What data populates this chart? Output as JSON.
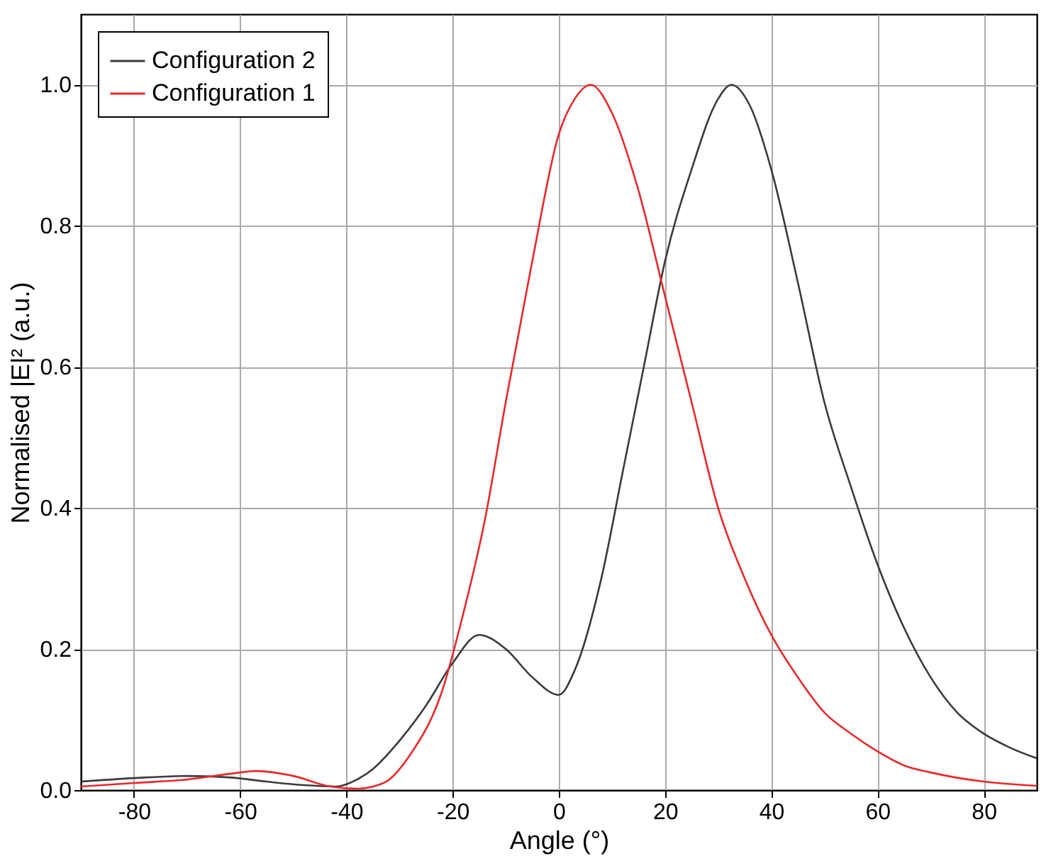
{
  "chart_data": {
    "type": "line",
    "xlabel": "Angle (°)",
    "ylabel": "Normalised |E|² (a.u.)",
    "xlim": [
      -90,
      90
    ],
    "ylim": [
      0,
      1.1
    ],
    "xticks": [
      -80,
      -60,
      -40,
      -20,
      0,
      20,
      40,
      60,
      80
    ],
    "yticks": [
      {
        "value": 0,
        "label": "0.0"
      },
      0.2,
      0.4,
      0.6,
      0.8,
      {
        "value": 1,
        "label": "1.0"
      }
    ],
    "grid": true,
    "legend": "top left",
    "marker": "none",
    "line_style": "solid",
    "series": [
      {
        "name": "Configuration 2",
        "color": "#3a3a3a",
        "x": [
          -90,
          -80,
          -70,
          -62,
          -55,
          -48,
          -42,
          -38,
          -35,
          -30,
          -25,
          -20,
          -15,
          -10,
          -5,
          0,
          3,
          8,
          12,
          16,
          20,
          25,
          30,
          32.5,
          36,
          40,
          45,
          50,
          55,
          60,
          65,
          70,
          75,
          80,
          85,
          90
        ],
        "values": [
          0.012,
          0.017,
          0.02,
          0.018,
          0.012,
          0.007,
          0.005,
          0.015,
          0.03,
          0.07,
          0.12,
          0.18,
          0.22,
          0.2,
          0.16,
          0.135,
          0.17,
          0.3,
          0.45,
          0.6,
          0.75,
          0.88,
          0.98,
          1.0,
          0.97,
          0.88,
          0.72,
          0.55,
          0.43,
          0.32,
          0.23,
          0.16,
          0.11,
          0.08,
          0.06,
          0.045
        ]
      },
      {
        "name": "Configuration 1",
        "color": "#e8282a",
        "x": [
          -90,
          -80,
          -70,
          -62,
          -57,
          -50,
          -43,
          -38,
          -33,
          -28,
          -22,
          -18,
          -14,
          -10,
          -5,
          0,
          3,
          6,
          10,
          15,
          20,
          25,
          30,
          35,
          40,
          45,
          50,
          55,
          60,
          65,
          70,
          80,
          90
        ],
        "values": [
          0.005,
          0.01,
          0.015,
          0.023,
          0.027,
          0.02,
          0.005,
          0.002,
          0.01,
          0.05,
          0.14,
          0.25,
          0.38,
          0.55,
          0.75,
          0.93,
          0.98,
          1.0,
          0.96,
          0.85,
          0.7,
          0.55,
          0.4,
          0.3,
          0.22,
          0.16,
          0.11,
          0.08,
          0.055,
          0.035,
          0.025,
          0.012,
          0.006
        ]
      }
    ]
  }
}
